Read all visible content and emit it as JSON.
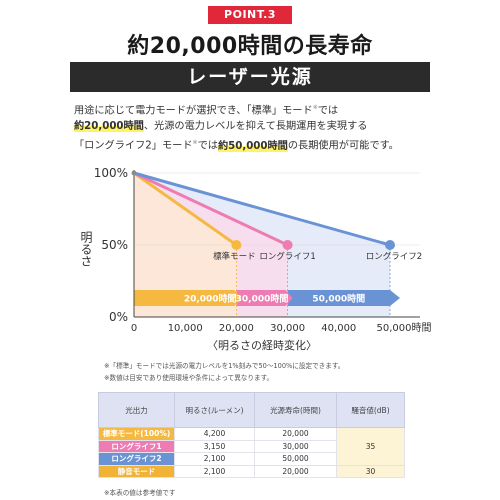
{
  "badge": "POINT.3",
  "headline": "約20,000時間の長寿命",
  "band_title": "レーザー光源",
  "description": {
    "line1_a": "用途に応じて電力モードが選択でき、「標準」モード",
    "line1_mark": "※",
    "line1_b": "では",
    "line2_hl": "約20,000時間",
    "line2_rest": "、光源の電力レベルを抑えて長期運用を実現する",
    "line3_a": "「ロングライフ2」モード",
    "line3_mark": "※",
    "line3_b": "では",
    "line3_hl": "約50,000時間",
    "line3_c": "の長期使用が可能です。"
  },
  "colors": {
    "standard": "#f5b942",
    "long1": "#ee7cb2",
    "long2": "#6a93d6",
    "badge": "#e0283a",
    "band": "#2b2b2b",
    "highlight": "#fff266",
    "eco": "#f0b237"
  },
  "chart_data": {
    "type": "line",
    "ylabel": "明るさ",
    "xlabel": "〈明るさの経時変化〉",
    "xlim": [
      0,
      50000
    ],
    "ylim": [
      0,
      100
    ],
    "x_ticks": [
      "0",
      "10,000",
      "20,000",
      "30,000",
      "40,000",
      "50,000時間"
    ],
    "y_ticks": [
      "0%",
      "50%",
      "100%"
    ],
    "series": [
      {
        "name": "標準モード",
        "points": [
          [
            0,
            100
          ],
          [
            20000,
            50
          ]
        ]
      },
      {
        "name": "ロングライフ1",
        "points": [
          [
            0,
            100
          ],
          [
            30000,
            50
          ]
        ]
      },
      {
        "name": "ロングライフ2",
        "points": [
          [
            0,
            100
          ],
          [
            50000,
            50
          ]
        ]
      }
    ],
    "bar_labels": [
      "20,000時間",
      "30,000時間",
      "50,000時間"
    ]
  },
  "notes": {
    "n1": "※「標準」モードでは光源の電力レベルを1%刻みで50～100%に設定できます。",
    "n2": "※数値は目安であり使用環境や条件によって異なります。"
  },
  "table": {
    "headers": [
      "光出力",
      "明るさ(ルーメン)",
      "光源寿命(時間)",
      "騒音値(dB)"
    ],
    "rows": [
      {
        "mode": "標準モード(100%)",
        "lumens": "4,200",
        "life": "20,000",
        "color": "#f5b942"
      },
      {
        "mode": "ロングライフ1",
        "lumens": "3,150",
        "life": "30,000",
        "color": "#ee7cb2"
      },
      {
        "mode": "ロングライフ2",
        "lumens": "2,100",
        "life": "50,000",
        "color": "#6a93d6"
      },
      {
        "mode": "静音モード",
        "lumens": "2,100",
        "life": "20,000",
        "color": "#f0b237"
      }
    ],
    "noise_shared": "35",
    "noise_eco": "30",
    "footnote": "※本表の値は参考値です"
  }
}
